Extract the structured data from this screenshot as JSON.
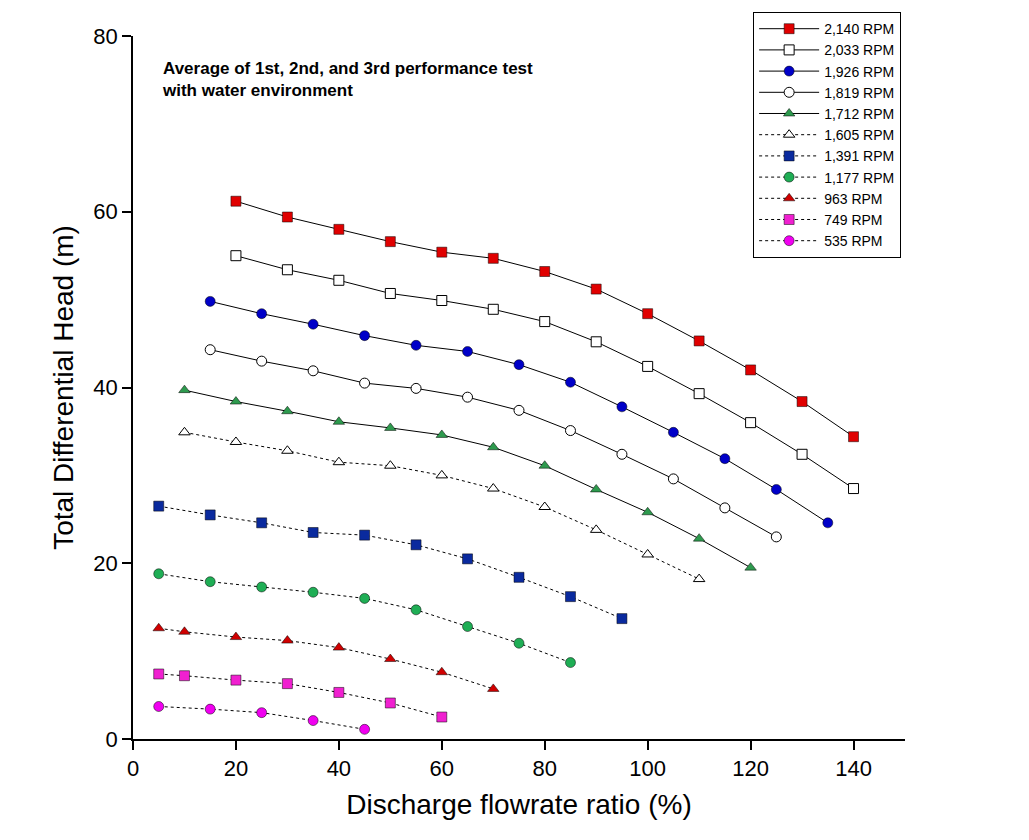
{
  "chart_data": {
    "type": "line",
    "annotation": [
      "Average of 1st, 2nd, and 3rd performance test",
      "with water environment"
    ],
    "x_label": "Discharge flowrate ratio (%)",
    "y_label": "Total Differential Head (m)",
    "xlim": [
      0,
      150
    ],
    "xticks": [
      0,
      20,
      40,
      60,
      80,
      100,
      120,
      140
    ],
    "ylim": [
      0,
      80
    ],
    "yticks": [
      0,
      20,
      40,
      60,
      80
    ],
    "grid": false,
    "legend": "top right",
    "series": [
      {
        "name": "2,140 RPM",
        "color": "#e00000",
        "marker": "square",
        "line_style": "solid",
        "x": [
          20,
          30,
          40,
          50,
          60,
          70,
          80,
          90,
          100,
          110,
          120,
          130,
          140
        ],
        "values": [
          61.2,
          59.4,
          58.0,
          56.6,
          55.4,
          54.7,
          53.2,
          51.2,
          48.4,
          45.3,
          42.0,
          38.4,
          34.4
        ]
      },
      {
        "name": "2,033 RPM",
        "color": "#000000",
        "marker": "square-open",
        "line_style": "solid",
        "x": [
          20,
          30,
          40,
          50,
          60,
          70,
          80,
          90,
          100,
          110,
          120,
          130,
          140
        ],
        "values": [
          55.0,
          53.4,
          52.2,
          50.7,
          49.9,
          48.9,
          47.5,
          45.2,
          42.4,
          39.3,
          36.0,
          32.4,
          28.5
        ]
      },
      {
        "name": "1,926 RPM",
        "color": "#0000c8",
        "marker": "circle",
        "line_style": "solid",
        "x": [
          15,
          25,
          35,
          45,
          55,
          65,
          75,
          85,
          95,
          105,
          115,
          125,
          135
        ],
        "values": [
          49.8,
          48.4,
          47.2,
          45.9,
          44.8,
          44.1,
          42.6,
          40.6,
          37.8,
          34.9,
          31.9,
          28.4,
          24.6
        ]
      },
      {
        "name": "1,819 RPM",
        "color": "#000000",
        "marker": "circle-open",
        "line_style": "solid",
        "x": [
          15,
          25,
          35,
          45,
          55,
          65,
          75,
          85,
          95,
          105,
          115,
          125
        ],
        "values": [
          44.3,
          43.0,
          41.9,
          40.5,
          39.9,
          38.9,
          37.4,
          35.1,
          32.4,
          29.6,
          26.3,
          23.0
        ]
      },
      {
        "name": "1,712 RPM",
        "color": "#2e9a4e",
        "marker": "triangle-up",
        "line_style": "solid",
        "x": [
          10,
          20,
          30,
          40,
          50,
          60,
          70,
          80,
          90,
          100,
          110,
          120
        ],
        "values": [
          39.7,
          38.4,
          37.3,
          36.1,
          35.4,
          34.6,
          33.2,
          31.1,
          28.4,
          25.8,
          22.8,
          19.5
        ]
      },
      {
        "name": "1,605 RPM",
        "color": "#000000",
        "marker": "triangle-up-open",
        "line_style": "dotted",
        "x": [
          10,
          20,
          30,
          40,
          50,
          60,
          70,
          80,
          90,
          100,
          110
        ],
        "values": [
          34.9,
          33.8,
          32.8,
          31.5,
          31.1,
          30.0,
          28.5,
          26.4,
          23.8,
          21.0,
          18.2
        ]
      },
      {
        "name": "1,391 RPM",
        "color": "#0a2a9e",
        "marker": "square",
        "line_style": "dotted",
        "x": [
          5,
          15,
          25,
          35,
          45,
          55,
          65,
          75,
          85,
          95
        ],
        "values": [
          26.5,
          25.5,
          24.6,
          23.5,
          23.2,
          22.1,
          20.5,
          18.4,
          16.2,
          13.7
        ]
      },
      {
        "name": "1,177 RPM",
        "color": "#1fae55",
        "marker": "circle",
        "line_style": "dotted",
        "x": [
          5,
          15,
          25,
          35,
          45,
          55,
          65,
          75,
          85
        ],
        "values": [
          18.8,
          17.9,
          17.3,
          16.7,
          16.0,
          14.7,
          12.8,
          10.9,
          8.7
        ]
      },
      {
        "name": "963 RPM",
        "color": "#d00000",
        "marker": "triangle-up",
        "line_style": "dotted",
        "x": [
          5,
          10,
          20,
          30,
          40,
          50,
          60,
          70
        ],
        "values": [
          12.6,
          12.2,
          11.6,
          11.2,
          10.4,
          9.1,
          7.6,
          5.7
        ]
      },
      {
        "name": "749 RPM",
        "color": "#f020d0",
        "marker": "square",
        "line_style": "dotted",
        "x": [
          5,
          10,
          20,
          30,
          40,
          50,
          60
        ],
        "values": [
          7.4,
          7.2,
          6.7,
          6.3,
          5.3,
          4.1,
          2.5
        ]
      },
      {
        "name": "535 RPM",
        "color": "#f000f0",
        "marker": "circle",
        "line_style": "dotted",
        "x": [
          5,
          15,
          25,
          35,
          45
        ],
        "values": [
          3.7,
          3.4,
          3.0,
          2.1,
          1.1
        ]
      }
    ]
  }
}
